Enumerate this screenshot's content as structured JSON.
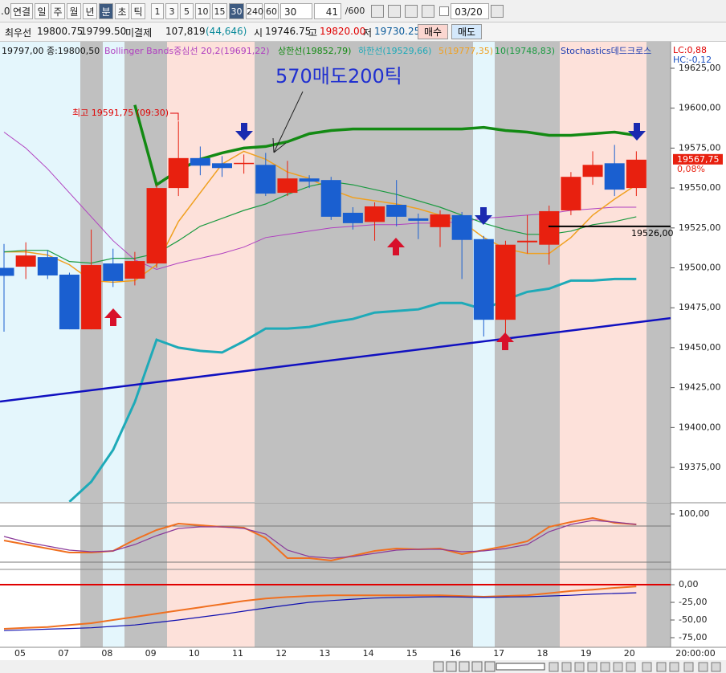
{
  "toolbar": {
    "prefix": ".0",
    "buttons": [
      "연결",
      "일",
      "주",
      "월",
      "년",
      "분",
      "초",
      "틱"
    ],
    "selected_button_index": 5,
    "intervals": [
      "1",
      "3",
      "5",
      "10",
      "15",
      "30",
      "240",
      "60"
    ],
    "selected_interval_index": 5,
    "interval_select": "30",
    "count": "41",
    "count_max": "/600",
    "date": "03/20"
  },
  "info_bar": {
    "best_label": "최우선",
    "ask": "19800.75",
    "bid": "19799.50",
    "oi_label": "미결제",
    "oi": "107,819",
    "oi_change": "(44,646)",
    "open_label": "시",
    "open": "19746.75",
    "high_label": "고",
    "high": "19820.00",
    "low_label": "저",
    "low": "19730.25",
    "buy": "매수",
    "sell": "매도"
  },
  "chart_data": [
    {
      "type": "candlestick",
      "header_text": "19797,00 종:19800,50",
      "signal_label": "Stochastics데드크로스",
      "annotations": [
        "570매도200틱",
        "최고 19591,75 (09:30)"
      ],
      "lc_label": "LC:0,88",
      "hc_label": "HC:-0,12",
      "up_color": "#e8200f",
      "down_color": "#1a5fd0",
      "open": [
        19500,
        19500.75,
        19506.75,
        19495.75,
        19461.5,
        19502.75,
        19493.25,
        19502.75,
        19550,
        19568.75,
        19565.5,
        19565.5,
        19564.5,
        19547,
        19556,
        19555,
        19534.5,
        19528.75,
        19539.5,
        19531,
        19525.5,
        19533,
        19518,
        19467.5,
        19516,
        19514.5,
        19536,
        19557,
        19565.5,
        19550
      ],
      "high": [
        19515,
        19516,
        19511,
        19497,
        19524,
        19512,
        19510,
        19552,
        19591.75,
        19576,
        19570,
        19571,
        19572,
        19567,
        19558,
        19557,
        19538,
        19541,
        19555,
        19534,
        19536,
        19535,
        19520,
        19517,
        19533,
        19539,
        19560,
        19573,
        19577,
        19573
      ],
      "low": [
        19460,
        19493,
        19493,
        19461.5,
        19461.5,
        19488,
        19489,
        19500,
        19545,
        19558,
        19557,
        19559,
        19545,
        19545,
        19550,
        19530,
        19524,
        19517,
        19526,
        19518,
        19513,
        19493,
        19457,
        19452,
        19509,
        19502,
        19533,
        19552,
        19545,
        19545
      ],
      "close": [
        19495,
        19507.75,
        19495.25,
        19461.5,
        19501.75,
        19491.75,
        19504.25,
        19550,
        19568.75,
        19564,
        19562.5,
        19565.75,
        19546.5,
        19556,
        19554,
        19532,
        19528,
        19538.5,
        19532,
        19529.5,
        19533.5,
        19517.5,
        19467.5,
        19514.5,
        19517,
        19535.5,
        19557,
        19564.5,
        19549,
        19567.75
      ],
      "series": [
        {
          "name": "Bollinger Bands중심선 20,2(19691,22)",
          "color": "#b040c0",
          "values": [
            19585,
            19575,
            19562,
            19547,
            19532,
            19517,
            19505,
            19499,
            19503,
            19506,
            19509,
            19513,
            19519,
            19521,
            19523,
            19525,
            19526,
            19527,
            19527,
            19528,
            19528,
            19529,
            19531,
            19532,
            19533,
            19534,
            19536,
            19537,
            19538,
            19538
          ]
        },
        {
          "name": "상한선(19852,79)",
          "color": "#138a13",
          "values": [
            null,
            null,
            null,
            null,
            null,
            null,
            19602,
            19552,
            19561,
            19568,
            19572,
            19575,
            19576,
            19579,
            19584,
            19586,
            19587,
            19587,
            19587,
            19587,
            19587,
            19587,
            19588,
            19586,
            19585,
            19583,
            19583,
            19584,
            19585,
            19583
          ]
        },
        {
          "name": "하한선(19529,66)",
          "color": "#1eaab8",
          "values": [
            null,
            null,
            null,
            19353.5,
            19366,
            19386,
            19416,
            19455,
            19450,
            19448,
            19447,
            19454,
            19462,
            19462,
            19463,
            19466,
            19468,
            19472,
            19473,
            19474,
            19478,
            19478,
            19474,
            19480,
            19485,
            19487,
            19492,
            19492,
            19493,
            19493
          ]
        },
        {
          "name": "5(19777,35)",
          "color": "#f0a020",
          "values": [
            19510,
            19510,
            19508,
            19502,
            19492,
            19491,
            19492,
            19502,
            19529,
            19547,
            19565,
            19573,
            19568,
            19560,
            19556,
            19549,
            19544,
            19542,
            19540,
            19537,
            19533,
            19529,
            19519,
            19512,
            19509,
            19509,
            19519,
            19533,
            19543,
            19552
          ]
        },
        {
          "name": "10(19748,83)",
          "color": "#1a9a40",
          "values": [
            19510,
            19511,
            19511,
            19504,
            19503,
            19506,
            19506,
            19509,
            19517,
            19526,
            19531,
            19536,
            19540,
            19546,
            19551,
            19554,
            19552,
            19549,
            19546,
            19542,
            19538,
            19533,
            19528,
            19524,
            19521,
            19521,
            19523,
            19527,
            19529,
            19532
          ]
        }
      ],
      "trendline": {
        "start": 19416.25,
        "end": 19468.5,
        "color": "#1010c0"
      },
      "hline": {
        "value": 19526,
        "label": "19526,00"
      },
      "last_price": {
        "value": 19567.75,
        "label": "19567,75"
      },
      "change": {
        "value": 0.08,
        "label": "0,08%"
      },
      "ylim": [
        19353.4,
        19641.6
      ],
      "yticks": [
        {
          "value": 19625,
          "label": "19625,00"
        },
        {
          "value": 19600,
          "label": "19600,00"
        },
        {
          "value": 19575,
          "label": "19575,00"
        },
        {
          "value": 19550,
          "label": "19550,00"
        },
        {
          "value": 19525,
          "label": "19525,00"
        },
        {
          "value": 19500,
          "label": "19500,00"
        },
        {
          "value": 19475,
          "label": "19475,00"
        },
        {
          "value": 19450,
          "label": "19450,00"
        },
        {
          "value": 19425,
          "label": "19425,00"
        },
        {
          "value": 19400,
          "label": "19400,00"
        },
        {
          "value": 19375,
          "label": "19375,00"
        }
      ],
      "x_labels": [
        "05",
        "07",
        "08",
        "09",
        "10",
        "11",
        "12",
        "13",
        "14",
        "15",
        "16",
        "17",
        "18",
        "19",
        "20"
      ],
      "x_end_label": "20:00:00"
    },
    {
      "type": "line",
      "series": [
        {
          "color": "#f07020",
          "values": [
            56,
            49.3,
            42.7,
            36,
            36,
            38.7,
            57.3,
            73.3,
            84,
            81.3,
            78.7,
            77.3,
            60,
            26.7,
            26.7,
            22.7,
            30.7,
            38.7,
            42.7,
            41.3,
            42.7,
            33.3,
            40,
            46.7,
            54.7,
            78.7,
            86.7,
            93.3,
            85.3,
            82.7
          ]
        },
        {
          "color": "#8a3a9a",
          "values": [
            62.7,
            53.3,
            46.7,
            40,
            37.3,
            38.7,
            49.3,
            64,
            76,
            78.7,
            78.7,
            76,
            66.7,
            40,
            29.3,
            26.7,
            29.3,
            34.7,
            40,
            41.3,
            41.3,
            37.3,
            38.7,
            42.7,
            49.3,
            70.7,
            82.7,
            89.3,
            86.7,
            82.7
          ]
        }
      ],
      "levels": [
        80,
        20
      ],
      "ylim": [
        9.3,
        117.3
      ],
      "yticks": [
        {
          "value": 100,
          "label": "100,00"
        }
      ]
    },
    {
      "type": "line",
      "series": [
        {
          "color": "#f07020",
          "values": [
            -62.5,
            -61,
            -60,
            -57,
            -54.5,
            -50,
            -45.5,
            -41,
            -36.5,
            -32,
            -27.5,
            -23,
            -19.5,
            -17.5,
            -16,
            -15,
            -15,
            -15,
            -15,
            -15,
            -15,
            -16,
            -17,
            -16,
            -15,
            -12,
            -9,
            -7,
            -4.5,
            -2.5
          ]
        },
        {
          "color": "#1010b0",
          "values": [
            -65,
            -64,
            -63,
            -62,
            -61,
            -59,
            -57,
            -53.5,
            -50,
            -46,
            -42,
            -37.5,
            -33,
            -29,
            -25,
            -22.5,
            -20.5,
            -19,
            -18,
            -17.5,
            -17,
            -17.5,
            -18,
            -17.5,
            -17,
            -16,
            -15,
            -13.5,
            -12.5,
            -11.5
          ]
        }
      ],
      "zero_color": "#e00000",
      "ylim": [
        -87.5,
        20.5
      ],
      "yticks": [
        {
          "value": 0,
          "label": "0,00"
        },
        {
          "value": -25,
          "label": "-25,00"
        },
        {
          "value": -50,
          "label": "-50,00"
        },
        {
          "value": -75,
          "label": "-75,00"
        }
      ]
    }
  ]
}
